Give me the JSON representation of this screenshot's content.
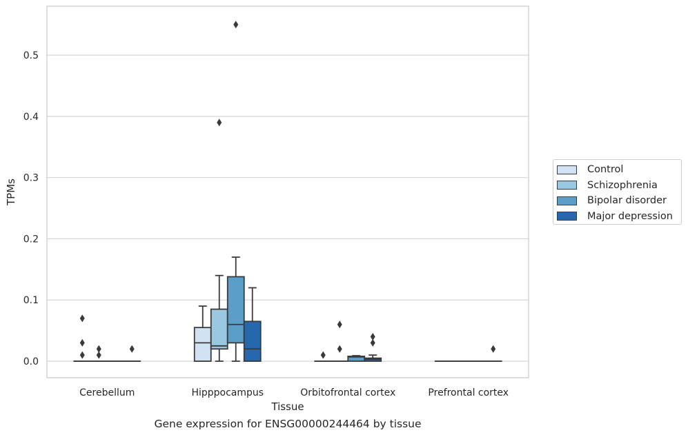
{
  "chart_data": {
    "type": "box",
    "title": "",
    "xlabel": "Tissue",
    "ylabel": "TPMs",
    "caption": "Gene expression for ENSG00000244464 by tissue",
    "ylim": [
      -0.027,
      0.58
    ],
    "yticks": [
      0.0,
      0.1,
      0.2,
      0.3,
      0.4,
      0.5
    ],
    "ytick_labels": [
      "0.0",
      "0.1",
      "0.2",
      "0.3",
      "0.4",
      "0.5"
    ],
    "grid": "horizontal",
    "legend_position": "right",
    "categories": [
      "Cerebellum",
      "Hipppocampus",
      "Orbitofrontal cortex",
      "Prefrontal cortex"
    ],
    "series": [
      {
        "name": "Control",
        "color": "#d1e2f2",
        "boxes": [
          {
            "category": "Cerebellum",
            "whislo": 0,
            "q1": 0,
            "med": 0,
            "q3": 0,
            "whishi": 0,
            "fliers": [
              0.01,
              0.03,
              0.07
            ]
          },
          {
            "category": "Hipppocampus",
            "whislo": 0,
            "q1": 0,
            "med": 0.03,
            "q3": 0.055,
            "whishi": 0.09,
            "fliers": []
          },
          {
            "category": "Orbitofrontal cortex",
            "whislo": 0,
            "q1": 0,
            "med": 0,
            "q3": 0,
            "whishi": 0,
            "fliers": [
              0.01
            ]
          },
          {
            "category": "Prefrontal cortex",
            "whislo": 0,
            "q1": 0,
            "med": 0,
            "q3": 0,
            "whishi": 0,
            "fliers": []
          }
        ]
      },
      {
        "name": "Schizophrenia",
        "color": "#9ac8e0",
        "boxes": [
          {
            "category": "Cerebellum",
            "whislo": 0,
            "q1": 0,
            "med": 0,
            "q3": 0,
            "whishi": 0,
            "fliers": [
              0.01,
              0.02
            ]
          },
          {
            "category": "Hipppocampus",
            "whislo": 0,
            "q1": 0.02,
            "med": 0.025,
            "q3": 0.085,
            "whishi": 0.14,
            "fliers": [
              0.39
            ]
          },
          {
            "category": "Orbitofrontal cortex",
            "whislo": 0,
            "q1": 0,
            "med": 0,
            "q3": 0,
            "whishi": 0,
            "fliers": [
              0.02,
              0.06
            ]
          },
          {
            "category": "Prefrontal cortex",
            "whislo": 0,
            "q1": 0,
            "med": 0,
            "q3": 0,
            "whishi": 0,
            "fliers": []
          }
        ]
      },
      {
        "name": "Bipolar disorder",
        "color": "#5a9ec9",
        "boxes": [
          {
            "category": "Cerebellum",
            "whislo": 0,
            "q1": 0,
            "med": 0,
            "q3": 0,
            "whishi": 0,
            "fliers": []
          },
          {
            "category": "Hipppocampus",
            "whislo": 0,
            "q1": 0.03,
            "med": 0.06,
            "q3": 0.138,
            "whishi": 0.17,
            "fliers": [
              0.55
            ]
          },
          {
            "category": "Orbitofrontal cortex",
            "whislo": 0,
            "q1": 0,
            "med": 0.007,
            "q3": 0.008,
            "whishi": 0.009,
            "fliers": []
          },
          {
            "category": "Prefrontal cortex",
            "whislo": 0,
            "q1": 0,
            "med": 0,
            "q3": 0,
            "whishi": 0,
            "fliers": []
          }
        ]
      },
      {
        "name": "Major depression",
        "color": "#2767ac",
        "boxes": [
          {
            "category": "Cerebellum",
            "whislo": 0,
            "q1": 0,
            "med": 0,
            "q3": 0,
            "whishi": 0,
            "fliers": [
              0.02
            ]
          },
          {
            "category": "Hipppocampus",
            "whislo": 0,
            "q1": 0,
            "med": 0.02,
            "q3": 0.065,
            "whishi": 0.12,
            "fliers": []
          },
          {
            "category": "Orbitofrontal cortex",
            "whislo": 0,
            "q1": 0,
            "med": 0.003,
            "q3": 0.005,
            "whishi": 0.01,
            "fliers": [
              0.03,
              0.04
            ]
          },
          {
            "category": "Prefrontal cortex",
            "whislo": 0,
            "q1": 0,
            "med": 0,
            "q3": 0,
            "whishi": 0,
            "fliers": [
              0.02
            ]
          }
        ]
      }
    ]
  }
}
